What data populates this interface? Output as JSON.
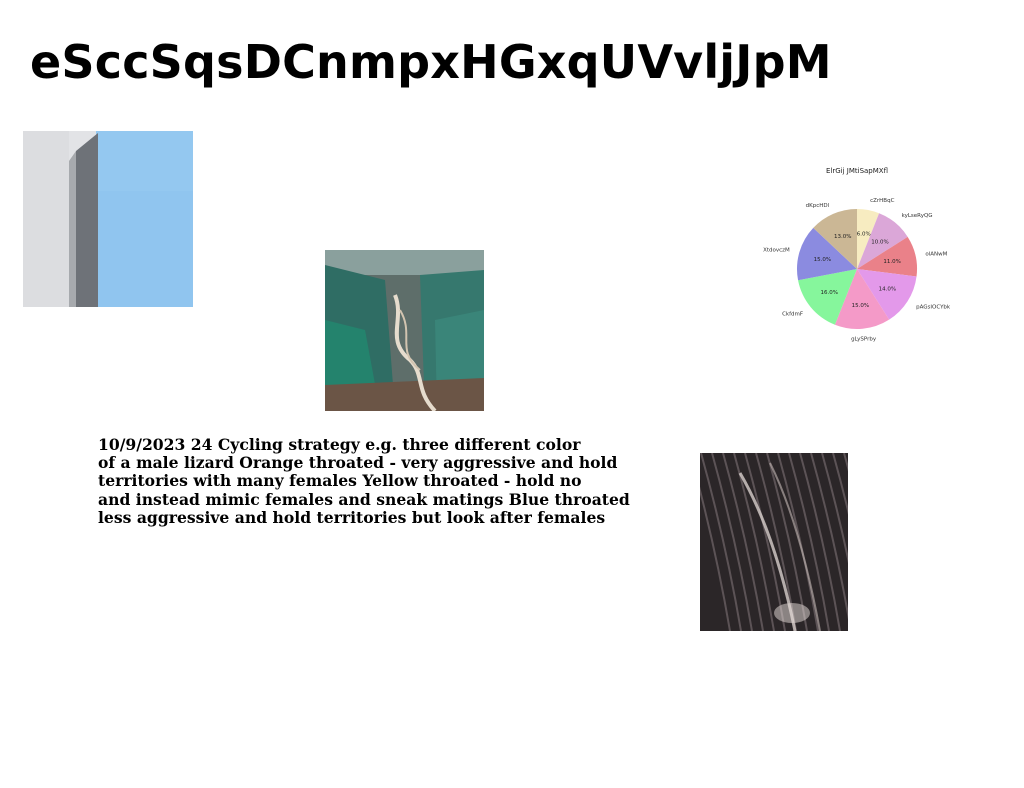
{
  "page": {
    "title": "eSccSqsDCnmpxHGxqUVvljJpM",
    "notes_text": "10/9/2023 24 Cycling strategy e.g. three different color\nof a male lizard Orange throated - very aggressive and hold\nterritories with many females Yellow throated - hold no\nand instead mimic females and sneak matings Blue throated\nless aggressive and hold territories but look after females"
  },
  "chart_data": {
    "type": "pie",
    "title": "ElrGij JMtiSapMXfl",
    "start": "top",
    "direction": "clockwise",
    "slices": [
      {
        "label": "cZrHBqC",
        "value": 6.0,
        "pct_label": "6.0%",
        "color": "#f7ecc1"
      },
      {
        "label": "kyLseRyQG",
        "value": 10.0,
        "pct_label": "10.0%",
        "color": "#dba7d8"
      },
      {
        "label": "olANwM",
        "value": 11.0,
        "pct_label": "11.0%",
        "color": "#ea8189"
      },
      {
        "label": "pAGsIOCYbk",
        "value": 14.0,
        "pct_label": "14.0%",
        "color": "#e399ea"
      },
      {
        "label": "gLySPrby",
        "value": 15.0,
        "pct_label": "15.0%",
        "color": "#f49ac8"
      },
      {
        "label": "CkfdmF",
        "value": 16.0,
        "pct_label": "16.0%",
        "color": "#86f69c"
      },
      {
        "label": "XtdovczM",
        "value": 15.0,
        "pct_label": "15.0%",
        "color": "#8b8be0"
      },
      {
        "label": "dKpcHDl",
        "value": 13.0,
        "pct_label": "13.0%",
        "color": "#cbb795"
      }
    ]
  }
}
